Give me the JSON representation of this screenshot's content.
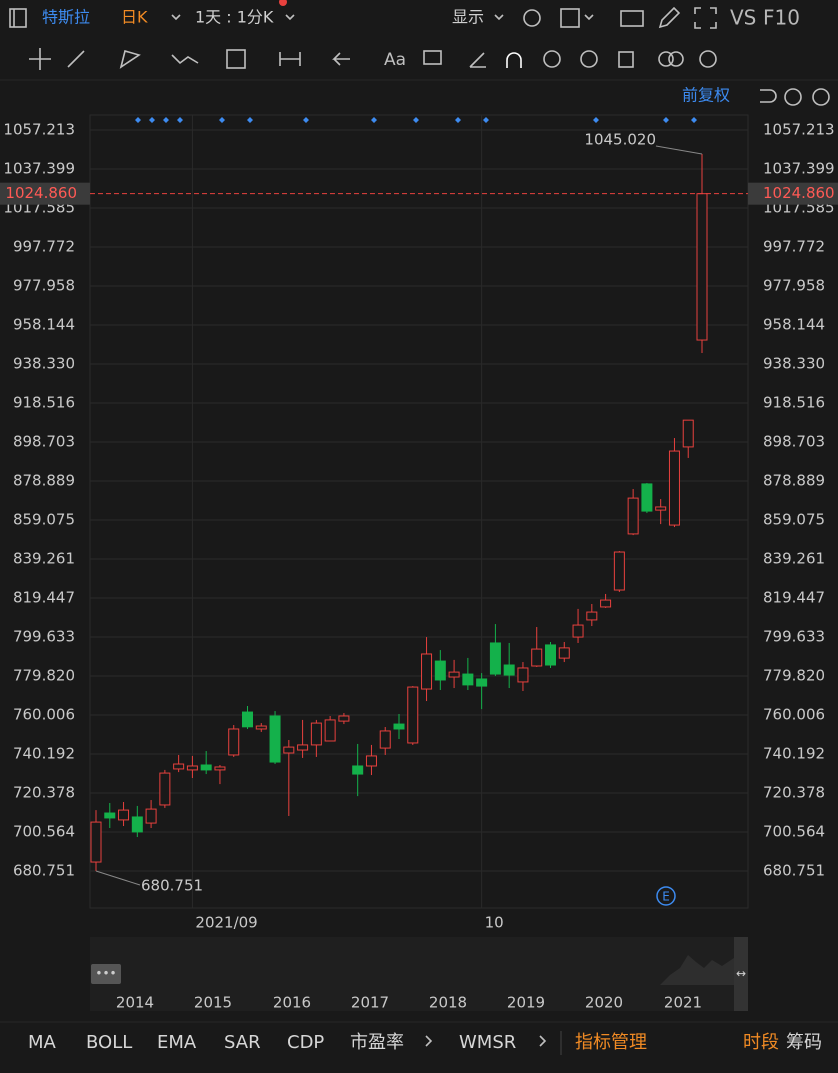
{
  "header": {
    "stock": "特斯拉",
    "period": "日K",
    "interval": "1天 : 1分K",
    "display": "显示",
    "vs": "VS",
    "f10": "F10"
  },
  "toolbar": {
    "text_tool": "Aa"
  },
  "chart_data": {
    "type": "candlestick",
    "adjust_label": "前复权",
    "up_color": "#e8413e",
    "down_color": "#14b14b",
    "categories": [
      null,
      null,
      null,
      null,
      null,
      null,
      null,
      "2021/09",
      null,
      null,
      null,
      null,
      null,
      null,
      null,
      null,
      null,
      null,
      null,
      null,
      null,
      null,
      null,
      null,
      null,
      null,
      null,
      null,
      "10",
      null,
      null,
      null,
      null,
      null,
      null,
      null,
      null,
      null,
      null,
      null,
      null,
      null,
      null,
      null,
      null
    ],
    "open": [
      685.3,
      710.2,
      706.7,
      708.2,
      705.1,
      714.3,
      732.6,
      732.1,
      734.6,
      732.1,
      739.7,
      761.5,
      752.9,
      759.5,
      740.7,
      742.2,
      744.8,
      746.8,
      756.9,
      734.1,
      734.1,
      743.2,
      755.4,
      745.8,
      773.2,
      787.4,
      779.3,
      780.8,
      778.3,
      796.6,
      785.4,
      776.8,
      784.9,
      795.6,
      788.9,
      799.6,
      808.3,
      814.9,
      823.5,
      852.0,
      877.4,
      864.1,
      856.5,
      896.2,
      950.5
    ],
    "high": [
      711.7,
      715.3,
      715.8,
      713.8,
      716.8,
      732.1,
      739.7,
      739.2,
      741.7,
      734.6,
      754.9,
      764.6,
      755.9,
      762.0,
      747.3,
      757.5,
      757.5,
      759.5,
      761.0,
      745.3,
      744.8,
      753.9,
      760.5,
      774.7,
      799.6,
      793.0,
      788.0,
      789.0,
      781.3,
      806.2,
      796.6,
      786.9,
      804.7,
      797.1,
      797.1,
      813.9,
      816.4,
      821.5,
      843.3,
      874.8,
      877.9,
      869.7,
      900.7,
      909.8,
      1045.02
    ],
    "low": [
      680.751,
      702.6,
      703.6,
      698.0,
      702.6,
      712.8,
      731.0,
      728.0,
      730.0,
      724.9,
      738.7,
      752.9,
      751.4,
      735.1,
      708.7,
      738.2,
      738.7,
      746.8,
      755.4,
      718.8,
      729.5,
      739.7,
      747.8,
      744.8,
      767.1,
      772.7,
      773.7,
      772.7,
      763.0,
      779.8,
      773.7,
      772.2,
      784.4,
      783.9,
      786.9,
      796.6,
      805.2,
      814.4,
      822.5,
      851.4,
      862.6,
      857.0,
      855.5,
      890.6,
      943.9
    ],
    "close": [
      705.6,
      707.7,
      711.7,
      700.6,
      712.2,
      730.5,
      735.1,
      734.1,
      732.1,
      733.6,
      752.9,
      754.0,
      754.4,
      736.1,
      743.7,
      744.8,
      755.9,
      757.5,
      759.5,
      730.0,
      739.2,
      751.9,
      752.9,
      774.2,
      791.0,
      777.8,
      781.8,
      775.3,
      774.7,
      780.8,
      780.3,
      783.9,
      793.5,
      785.4,
      794.1,
      805.7,
      812.3,
      818.4,
      842.8,
      870.2,
      863.6,
      865.7,
      894.1,
      909.8,
      1024.86
    ],
    "ylim": [
      661.95,
      1064.83
    ],
    "yticks": [
      1057.213,
      1037.399,
      1017.585,
      997.772,
      977.958,
      958.144,
      {
        "value": 938.33,
        "label": "938.330"
      },
      918.516,
      898.703,
      878.889,
      859.075,
      839.261,
      819.447,
      799.633,
      {
        "value": 779.82,
        "label": "779.820"
      },
      760.006,
      740.192,
      720.378,
      700.564,
      680.751
    ],
    "grid": true,
    "annotations": {
      "high_label": "1045.020",
      "low_label": "680.751",
      "last_price": {
        "value": 1024.86,
        "label": "1024.860"
      },
      "earnings_marker": "E"
    }
  },
  "navigator": {
    "years": [
      "2014",
      "2015",
      "2016",
      "2017",
      "2018",
      "2019",
      "2020",
      "2021"
    ]
  },
  "indicators": {
    "tabs": [
      "MA",
      "BOLL",
      "EMA",
      "SAR",
      "CDP",
      "市盈率",
      "WMSR"
    ],
    "manage": "指标管理",
    "period": "时段",
    "chips": "筹码"
  }
}
